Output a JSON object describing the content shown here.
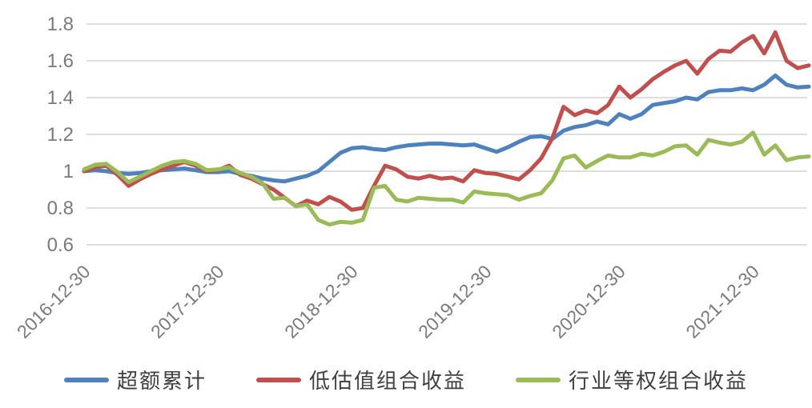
{
  "chart_data": {
    "type": "line",
    "title": "",
    "xlabel": "",
    "ylabel": "",
    "grid": true,
    "legend_position": "bottom",
    "background_color": "#FFFFFF",
    "gridline_color": "#D9D9D9",
    "axis_label_color": "#7A7A7A",
    "legend_text_color": "#3F3F3F",
    "x_axis": {
      "tick_labels": [
        "2016-12-30",
        "2017-12-30",
        "2018-12-30",
        "2019-12-30",
        "2020-12-30",
        "2021-12-30"
      ],
      "tick_indices": [
        0,
        12,
        24,
        36,
        48,
        60
      ],
      "label_rotation_deg": 45
    },
    "y_axis": {
      "ticks": [
        0.6,
        0.8,
        1,
        1.2,
        1.4,
        1.6,
        1.8
      ],
      "tick_labels": [
        "0.6",
        "0.8",
        "1",
        "1.2",
        "1.4",
        "1.6",
        "1.8"
      ],
      "ylim": [
        0.6,
        1.8
      ]
    },
    "dates": [
      "2016-12",
      "2017-01",
      "2017-02",
      "2017-03",
      "2017-04",
      "2017-05",
      "2017-06",
      "2017-07",
      "2017-08",
      "2017-09",
      "2017-10",
      "2017-11",
      "2017-12",
      "2018-01",
      "2018-02",
      "2018-03",
      "2018-04",
      "2018-05",
      "2018-06",
      "2018-07",
      "2018-08",
      "2018-09",
      "2018-10",
      "2018-11",
      "2018-12",
      "2019-01",
      "2019-02",
      "2019-03",
      "2019-04",
      "2019-05",
      "2019-06",
      "2019-07",
      "2019-08",
      "2019-09",
      "2019-10",
      "2019-11",
      "2019-12",
      "2020-01",
      "2020-02",
      "2020-03",
      "2020-04",
      "2020-05",
      "2020-06",
      "2020-07",
      "2020-08",
      "2020-09",
      "2020-10",
      "2020-11",
      "2020-12",
      "2021-01",
      "2021-02",
      "2021-03",
      "2021-04",
      "2021-05",
      "2021-06",
      "2021-07",
      "2021-08",
      "2021-09",
      "2021-10",
      "2021-11",
      "2021-12",
      "2022-01",
      "2022-02",
      "2022-03",
      "2022-04",
      "2022-05"
    ],
    "series": [
      {
        "name": "超额累计",
        "color": "#4F81BD",
        "values": [
          1.0,
          1.005,
          1.0,
          0.99,
          0.985,
          0.99,
          1.0,
          1.005,
          1.01,
          1.015,
          1.005,
          0.995,
          0.995,
          1.0,
          0.985,
          0.975,
          0.96,
          0.95,
          0.945,
          0.96,
          0.975,
          1.0,
          1.05,
          1.1,
          1.125,
          1.13,
          1.12,
          1.115,
          1.13,
          1.14,
          1.145,
          1.15,
          1.15,
          1.145,
          1.14,
          1.145,
          1.125,
          1.105,
          1.13,
          1.16,
          1.185,
          1.19,
          1.175,
          1.22,
          1.24,
          1.25,
          1.27,
          1.255,
          1.31,
          1.285,
          1.31,
          1.36,
          1.37,
          1.38,
          1.4,
          1.39,
          1.43,
          1.44,
          1.44,
          1.45,
          1.44,
          1.47,
          1.52,
          1.47,
          1.455,
          1.46
        ]
      },
      {
        "name": "低估值组合收益",
        "color": "#C0504D",
        "values": [
          1.0,
          1.02,
          1.03,
          0.98,
          0.92,
          0.955,
          0.985,
          1.01,
          1.03,
          1.05,
          1.03,
          1.0,
          1.005,
          1.03,
          0.98,
          0.96,
          0.93,
          0.9,
          0.855,
          0.81,
          0.84,
          0.82,
          0.86,
          0.835,
          0.79,
          0.8,
          0.92,
          1.03,
          1.01,
          0.97,
          0.96,
          0.975,
          0.96,
          0.965,
          0.945,
          1.005,
          0.99,
          0.985,
          0.97,
          0.955,
          1.005,
          1.07,
          1.18,
          1.35,
          1.305,
          1.33,
          1.315,
          1.36,
          1.46,
          1.4,
          1.445,
          1.5,
          1.54,
          1.575,
          1.6,
          1.53,
          1.61,
          1.655,
          1.65,
          1.7,
          1.735,
          1.64,
          1.755,
          1.6,
          1.56,
          1.575
        ]
      },
      {
        "name": "行业等权组合收益",
        "color": "#9BBB59",
        "values": [
          1.01,
          1.035,
          1.04,
          0.995,
          0.94,
          0.97,
          1.0,
          1.03,
          1.05,
          1.055,
          1.04,
          1.005,
          1.01,
          1.02,
          0.99,
          0.97,
          0.935,
          0.85,
          0.855,
          0.81,
          0.82,
          0.735,
          0.71,
          0.725,
          0.72,
          0.735,
          0.91,
          0.92,
          0.845,
          0.835,
          0.855,
          0.85,
          0.845,
          0.845,
          0.83,
          0.89,
          0.88,
          0.875,
          0.87,
          0.845,
          0.865,
          0.88,
          0.95,
          1.07,
          1.085,
          1.02,
          1.055,
          1.085,
          1.075,
          1.075,
          1.095,
          1.085,
          1.105,
          1.135,
          1.14,
          1.09,
          1.17,
          1.155,
          1.145,
          1.16,
          1.21,
          1.09,
          1.14,
          1.06,
          1.075,
          1.08
        ]
      }
    ]
  }
}
